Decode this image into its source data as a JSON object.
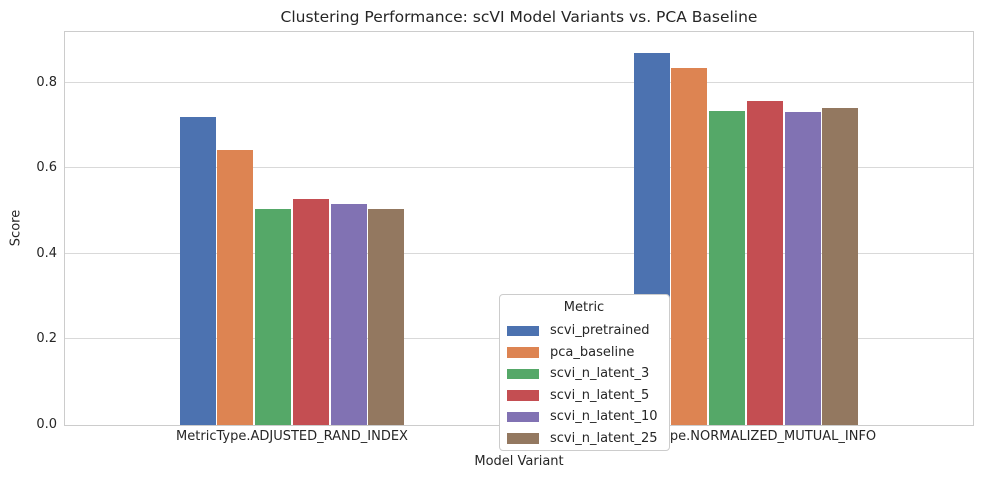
{
  "chart_data": {
    "type": "bar",
    "title": "Clustering Performance: scVI Model Variants vs. PCA Baseline",
    "xlabel": "Model Variant",
    "ylabel": "Score",
    "categories": [
      "MetricType.ADJUSTED_RAND_INDEX",
      "MetricType.NORMALIZED_MUTUAL_INFO"
    ],
    "series": [
      {
        "name": "scvi_pretrained",
        "color": "#4C72B0",
        "values": [
          0.719,
          0.868
        ]
      },
      {
        "name": "pca_baseline",
        "color": "#DD8452",
        "values": [
          0.643,
          0.833
        ]
      },
      {
        "name": "scvi_n_latent_3",
        "color": "#55A868",
        "values": [
          0.505,
          0.733
        ]
      },
      {
        "name": "scvi_n_latent_5",
        "color": "#C44E52",
        "values": [
          0.527,
          0.757
        ]
      },
      {
        "name": "scvi_n_latent_10",
        "color": "#8172B3",
        "values": [
          0.517,
          0.732
        ]
      },
      {
        "name": "scvi_n_latent_25",
        "color": "#937860",
        "values": [
          0.504,
          0.74
        ]
      }
    ],
    "yticks": [
      0.0,
      0.2,
      0.4,
      0.6,
      0.8
    ],
    "ytick_labels": [
      "0.0",
      "0.2",
      "0.4",
      "0.6",
      "0.8"
    ],
    "ylim": [
      0,
      0.918
    ],
    "grid": true,
    "legend": {
      "title": "Metric",
      "position": "center"
    },
    "style": {
      "background": "#ffffff",
      "grid_color": "#d9d9d9",
      "spine_color": "#cccccc",
      "text_color": "#262626"
    }
  }
}
